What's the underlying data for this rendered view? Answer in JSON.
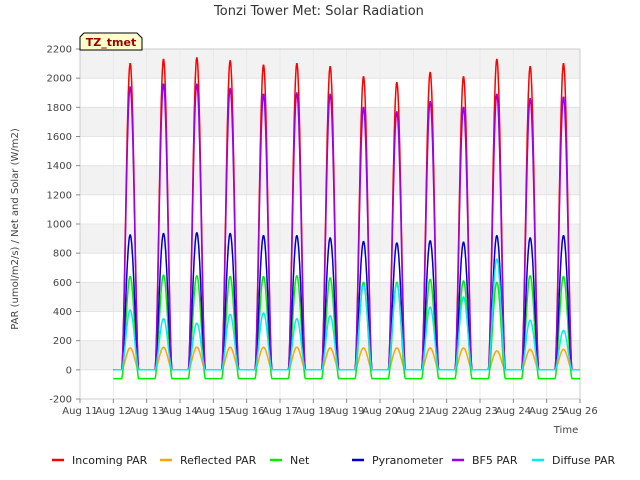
{
  "chart_data": {
    "type": "line",
    "title": "Tonzi Tower Met: Solar Radiation",
    "xlabel": "Time",
    "ylabel": "PAR (umol/m2/s) / Net and Solar (W/m2)",
    "tag": "TZ_tmet",
    "xlim": [
      11,
      26
    ],
    "ylim": [
      -200,
      2200
    ],
    "x_ticks": [
      {
        "value": 11,
        "label": "Aug 11"
      },
      {
        "value": 12,
        "label": "Aug 12"
      },
      {
        "value": 13,
        "label": "Aug 13"
      },
      {
        "value": 14,
        "label": "Aug 14"
      },
      {
        "value": 15,
        "label": "Aug 15"
      },
      {
        "value": 16,
        "label": "Aug 16"
      },
      {
        "value": 17,
        "label": "Aug 17"
      },
      {
        "value": 18,
        "label": "Aug 18"
      },
      {
        "value": 19,
        "label": "Aug 19"
      },
      {
        "value": 20,
        "label": "Aug 20"
      },
      {
        "value": 21,
        "label": "Aug 21"
      },
      {
        "value": 22,
        "label": "Aug 22"
      },
      {
        "value": 23,
        "label": "Aug 23"
      },
      {
        "value": 24,
        "label": "Aug 24"
      },
      {
        "value": 25,
        "label": "Aug 25"
      },
      {
        "value": 26,
        "label": "Aug 26"
      }
    ],
    "y_ticks": [
      -200,
      0,
      200,
      400,
      600,
      800,
      1000,
      1200,
      1400,
      1600,
      1800,
      2000,
      2200
    ],
    "grid": true,
    "legend_position": "bottom",
    "day_starts": [
      12,
      13,
      14,
      15,
      16,
      17,
      18,
      19,
      20,
      21,
      22,
      23,
      24,
      25
    ],
    "series": [
      {
        "name": "Incoming PAR",
        "color": "#ff0000",
        "night": 0,
        "daily_peaks": [
          2100,
          2130,
          2140,
          2120,
          2090,
          2100,
          2080,
          2010,
          1970,
          2040,
          2010,
          2130,
          2080,
          2100
        ]
      },
      {
        "name": "Reflected PAR",
        "color": "#ffa500",
        "night": 0,
        "daily_peaks": [
          150,
          155,
          155,
          155,
          155,
          155,
          150,
          150,
          150,
          150,
          150,
          130,
          140,
          140
        ]
      },
      {
        "name": "Net",
        "color": "#00ee00",
        "night": -60,
        "daily_peaks": [
          640,
          650,
          645,
          640,
          640,
          645,
          630,
          600,
          600,
          620,
          610,
          600,
          645,
          640
        ]
      },
      {
        "name": "Pyranometer",
        "color": "#0000cc",
        "night": 0,
        "daily_peaks": [
          925,
          935,
          940,
          935,
          920,
          920,
          905,
          880,
          870,
          885,
          875,
          920,
          905,
          920
        ]
      },
      {
        "name": "BF5 PAR",
        "color": "#9900ee",
        "night": 0,
        "daily_peaks": [
          1940,
          1960,
          1960,
          1930,
          1890,
          1900,
          1890,
          1800,
          1770,
          1840,
          1800,
          1890,
          1860,
          1870
        ]
      },
      {
        "name": "Diffuse PAR",
        "color": "#00eeee",
        "night": 0,
        "daily_peaks": [
          410,
          350,
          320,
          380,
          390,
          350,
          370,
          580,
          590,
          430,
          500,
          760,
          340,
          270
        ]
      }
    ]
  }
}
